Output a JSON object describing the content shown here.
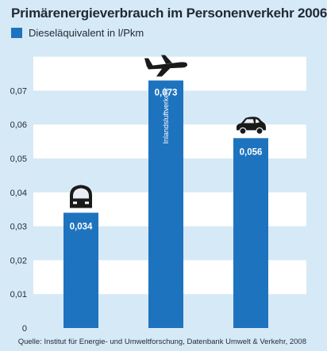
{
  "chart_data": {
    "type": "bar",
    "title": "Primärenergieverbrauch im Personenverkehr 2006",
    "legend": "Dieseläquivalent in l/Pkm",
    "categories": [
      "",
      "Inlandsluftverkehr",
      ""
    ],
    "values": [
      0.034,
      0.073,
      0.056
    ],
    "value_labels": [
      "0,034",
      "0,073",
      "0,056"
    ],
    "category_icons": [
      "train-icon",
      "airplane-icon",
      "car-icon"
    ],
    "yticks": [
      "0",
      "0,01",
      "0,02",
      "0,03",
      "0,04",
      "0,05",
      "0,06",
      "0,07"
    ],
    "ylim": [
      0,
      0.075
    ],
    "grid": true,
    "source": "Quelle: Institut für Energie- und Umweltforschung, Datenbank Umwelt & Verkehr, 2008",
    "colors": {
      "bar": "#1e73be",
      "background": "#d6e9f6",
      "band": "#ffffff",
      "text": "#1f2933"
    }
  }
}
